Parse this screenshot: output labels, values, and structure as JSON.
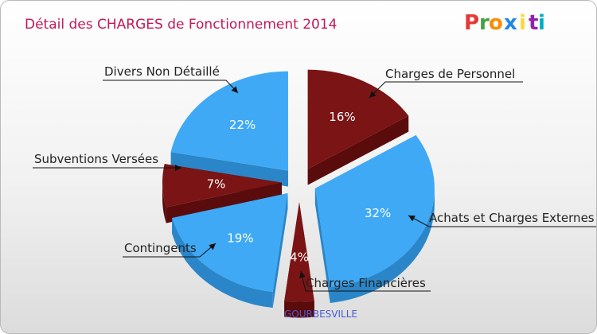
{
  "colors": {
    "blue": "#3fa9f5",
    "blue_dark": "#2a86c8",
    "red": "#7b1414",
    "red_dark": "#5a0b0b",
    "title": "#c2185b",
    "city": "#4a5ad6"
  },
  "logo": {
    "letters": [
      "P",
      "r",
      "o",
      "x",
      "i",
      "t",
      "i"
    ],
    "colors": [
      "#e53935",
      "#43a047",
      "#fb8c00",
      "#1e88e5",
      "#fdd835",
      "#8e24aa",
      "#00acc1"
    ]
  },
  "chart_data": {
    "type": "pie",
    "title": "Détail des CHARGES de Fonctionnement 2014",
    "subtitle": "GOURBESVILLE",
    "slices": [
      {
        "label": "Charges de Personnel",
        "value": 16,
        "pct_label": "16%",
        "color": "red"
      },
      {
        "label": "Achats et Charges Externes",
        "value": 32,
        "pct_label": "32%",
        "color": "blue"
      },
      {
        "label": "Charges Financières",
        "value": 4,
        "pct_label": "4%",
        "color": "red"
      },
      {
        "label": "Contingents",
        "value": 19,
        "pct_label": "19%",
        "color": "blue"
      },
      {
        "label": "Subventions Versées",
        "value": 7,
        "pct_label": "7%",
        "color": "red"
      },
      {
        "label": "Divers Non Détaillé",
        "value": 22,
        "pct_label": "22%",
        "color": "blue"
      }
    ]
  }
}
